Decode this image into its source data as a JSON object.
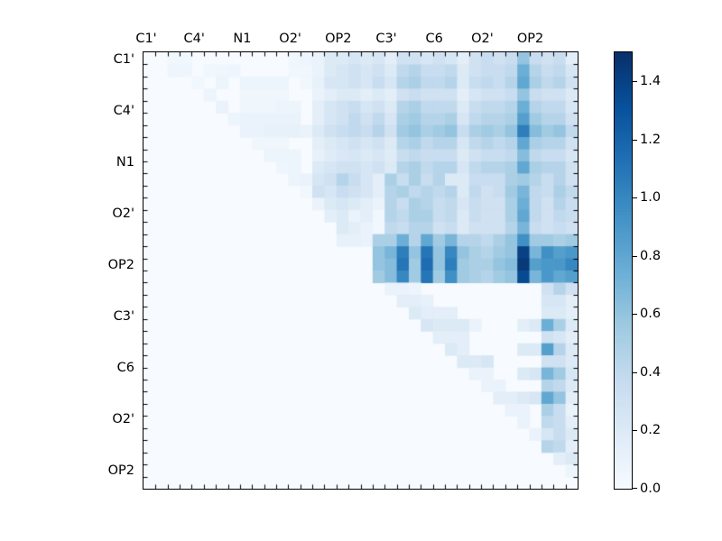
{
  "figure": {
    "background": "#ffffff",
    "frame_color": "#000000"
  },
  "chart_data": {
    "type": "heatmap",
    "title": "",
    "xlabel": "",
    "ylabel": "",
    "colormap": "Blues",
    "colormap_stops": [
      "#f7fbff",
      "#deebf7",
      "#c6dbef",
      "#9ecae1",
      "#6baed6",
      "#4292c6",
      "#2171b5",
      "#08519c",
      "#08306b"
    ],
    "vmin": 0.0,
    "vmax": 1.5,
    "n": 36,
    "grid": false,
    "x_tick_labels": [
      "C1'",
      "C4'",
      "N1",
      "O2'",
      "OP2",
      "C3'",
      "C6",
      "O2'",
      "OP2"
    ],
    "y_tick_labels": [
      "C1'",
      "C4'",
      "N1",
      "O2'",
      "OP2",
      "C3'",
      "C6",
      "O2'",
      "OP2"
    ],
    "label_cell_positions": [
      0,
      4,
      8,
      12,
      16,
      20,
      24,
      28,
      32
    ],
    "minor_ticks_every_cell": true,
    "matrix": [
      [
        0,
        0,
        0.05,
        0.05,
        0,
        0,
        0,
        0,
        0,
        0,
        0,
        0,
        0.05,
        0.07,
        0.1,
        0.2,
        0.2,
        0.25,
        0.2,
        0.25,
        0.15,
        0.3,
        0.3,
        0.25,
        0.3,
        0.25,
        0.15,
        0.3,
        0.35,
        0.3,
        0.35,
        0.6,
        0.35,
        0.3,
        0.35,
        0.15
      ],
      [
        0,
        0,
        0.07,
        0.07,
        0,
        0.05,
        0.06,
        0.07,
        0,
        0,
        0,
        0,
        0.05,
        0.05,
        0.1,
        0.2,
        0.25,
        0.3,
        0.25,
        0.3,
        0.2,
        0.4,
        0.45,
        0.35,
        0.35,
        0.4,
        0.2,
        0.3,
        0.35,
        0.35,
        0.4,
        0.75,
        0.45,
        0.35,
        0.4,
        0.25
      ],
      [
        0,
        0,
        0,
        0,
        0.05,
        0,
        0.08,
        0,
        0.08,
        0.08,
        0.08,
        0.08,
        0,
        0.05,
        0.12,
        0.25,
        0.25,
        0.3,
        0.25,
        0.35,
        0.25,
        0.45,
        0.5,
        0.4,
        0.4,
        0.45,
        0.2,
        0.35,
        0.4,
        0.35,
        0.45,
        0.8,
        0.5,
        0.4,
        0.45,
        0.3
      ],
      [
        0,
        0,
        0,
        0,
        0,
        0.08,
        0,
        0,
        0.06,
        0.06,
        0.06,
        0.06,
        0,
        0,
        0.1,
        0.15,
        0.2,
        0.2,
        0.15,
        0.2,
        0.15,
        0.3,
        0.35,
        0.3,
        0.3,
        0.3,
        0.15,
        0.25,
        0.3,
        0.3,
        0.35,
        0.6,
        0.35,
        0.3,
        0.3,
        0.2
      ],
      [
        0,
        0,
        0,
        0,
        0,
        0,
        0.1,
        0,
        0.06,
        0.06,
        0.06,
        0.08,
        0.08,
        0,
        0.15,
        0.25,
        0.3,
        0.35,
        0.25,
        0.3,
        0.2,
        0.45,
        0.5,
        0.4,
        0.4,
        0.4,
        0.2,
        0.35,
        0.4,
        0.4,
        0.45,
        0.75,
        0.45,
        0.4,
        0.4,
        0.25
      ],
      [
        0,
        0,
        0,
        0,
        0,
        0,
        0,
        0.08,
        0.1,
        0.1,
        0.1,
        0.1,
        0.1,
        0,
        0.15,
        0.25,
        0.3,
        0.4,
        0.3,
        0.4,
        0.25,
        0.5,
        0.55,
        0.45,
        0.45,
        0.5,
        0.25,
        0.4,
        0.45,
        0.45,
        0.5,
        0.85,
        0.55,
        0.45,
        0.45,
        0.3
      ],
      [
        0,
        0,
        0,
        0,
        0,
        0,
        0,
        0,
        0.1,
        0.1,
        0.12,
        0.12,
        0.12,
        0.1,
        0.2,
        0.3,
        0.35,
        0.4,
        0.35,
        0.45,
        0.3,
        0.55,
        0.6,
        0.5,
        0.55,
        0.6,
        0.35,
        0.5,
        0.55,
        0.5,
        0.6,
        1.05,
        0.65,
        0.55,
        0.6,
        0.4
      ],
      [
        0,
        0,
        0,
        0,
        0,
        0,
        0,
        0,
        0,
        0.06,
        0.06,
        0.06,
        0,
        0,
        0.15,
        0.2,
        0.25,
        0.3,
        0.25,
        0.3,
        0.2,
        0.45,
        0.5,
        0.4,
        0.45,
        0.45,
        0.25,
        0.4,
        0.45,
        0.4,
        0.45,
        0.8,
        0.5,
        0.45,
        0.45,
        0.3
      ],
      [
        0,
        0,
        0,
        0,
        0,
        0,
        0,
        0,
        0,
        0,
        0.08,
        0.08,
        0.08,
        0,
        0.12,
        0.18,
        0.22,
        0.25,
        0.2,
        0.25,
        0.18,
        0.35,
        0.4,
        0.35,
        0.35,
        0.35,
        0.2,
        0.3,
        0.35,
        0.35,
        0.4,
        0.65,
        0.4,
        0.35,
        0.35,
        0.25
      ],
      [
        0,
        0,
        0,
        0,
        0,
        0,
        0,
        0,
        0,
        0,
        0,
        0.07,
        0.08,
        0,
        0.2,
        0.25,
        0.3,
        0.3,
        0.25,
        0.3,
        0.2,
        0.45,
        0.5,
        0.4,
        0.45,
        0.45,
        0.25,
        0.4,
        0.45,
        0.45,
        0.5,
        0.8,
        0.5,
        0.45,
        0.45,
        0.3
      ],
      [
        0,
        0,
        0,
        0,
        0,
        0,
        0,
        0,
        0,
        0,
        0,
        0,
        0.08,
        0.1,
        0.25,
        0.3,
        0.45,
        0.35,
        0.25,
        0.15,
        0.5,
        0.35,
        0.5,
        0.35,
        0.45,
        0.2,
        0.2,
        0.35,
        0.35,
        0.35,
        0.5,
        0.55,
        0.45,
        0.35,
        0.45,
        0.3
      ],
      [
        0,
        0,
        0,
        0,
        0,
        0,
        0,
        0,
        0,
        0,
        0,
        0,
        0,
        0.05,
        0.3,
        0.25,
        0.35,
        0.3,
        0.25,
        0.15,
        0.45,
        0.5,
        0.4,
        0.45,
        0.4,
        0.45,
        0.2,
        0.4,
        0.3,
        0.35,
        0.55,
        0.7,
        0.4,
        0.35,
        0.5,
        0.4
      ],
      [
        0,
        0,
        0,
        0,
        0,
        0,
        0,
        0,
        0,
        0,
        0,
        0,
        0,
        0,
        0.1,
        0.2,
        0.25,
        0.2,
        0.15,
        0.1,
        0.45,
        0.35,
        0.5,
        0.45,
        0.35,
        0.4,
        0.25,
        0.35,
        0.3,
        0.3,
        0.5,
        0.75,
        0.4,
        0.3,
        0.45,
        0.35
      ],
      [
        0,
        0,
        0,
        0,
        0,
        0,
        0,
        0,
        0,
        0,
        0,
        0,
        0,
        0,
        0,
        0.15,
        0.2,
        0.1,
        0.15,
        0.05,
        0.45,
        0.4,
        0.5,
        0.5,
        0.35,
        0.4,
        0.2,
        0.35,
        0.3,
        0.3,
        0.5,
        0.8,
        0.4,
        0.3,
        0.4,
        0.35
      ],
      [
        0,
        0,
        0,
        0,
        0,
        0,
        0,
        0,
        0,
        0,
        0,
        0,
        0,
        0,
        0,
        0,
        0.2,
        0.15,
        0.1,
        0.05,
        0.4,
        0.35,
        0.45,
        0.45,
        0.3,
        0.35,
        0.2,
        0.3,
        0.3,
        0.3,
        0.45,
        0.7,
        0.35,
        0.3,
        0.35,
        0.3
      ],
      [
        0,
        0,
        0,
        0,
        0,
        0,
        0,
        0,
        0,
        0,
        0,
        0,
        0,
        0,
        0,
        0,
        0.12,
        0.12,
        0.1,
        0.5,
        0.5,
        0.75,
        0.45,
        0.8,
        0.55,
        0.7,
        0.45,
        0.45,
        0.4,
        0.5,
        0.6,
        0.95,
        0.55,
        0.55,
        0.5,
        0.55
      ],
      [
        0,
        0,
        0,
        0,
        0,
        0,
        0,
        0,
        0,
        0,
        0,
        0,
        0,
        0,
        0,
        0,
        0,
        0,
        0,
        0.6,
        0.7,
        1.05,
        0.6,
        1.1,
        0.6,
        1.0,
        0.6,
        0.5,
        0.45,
        0.55,
        0.6,
        1.4,
        0.7,
        0.95,
        0.85,
        0.9
      ],
      [
        0,
        0,
        0,
        0,
        0,
        0,
        0,
        0,
        0,
        0,
        0,
        0,
        0,
        0,
        0,
        0,
        0,
        0,
        0,
        0.6,
        0.65,
        1.1,
        0.55,
        1.15,
        0.6,
        1.05,
        0.55,
        0.5,
        0.5,
        0.6,
        0.65,
        1.45,
        0.85,
        0.9,
        0.9,
        1.0
      ],
      [
        0,
        0,
        0,
        0,
        0,
        0,
        0,
        0,
        0,
        0,
        0,
        0,
        0,
        0,
        0,
        0,
        0,
        0,
        0,
        0.55,
        0.65,
        1.0,
        0.55,
        1.1,
        0.55,
        0.95,
        0.55,
        0.5,
        0.45,
        0.55,
        0.6,
        1.35,
        0.7,
        0.9,
        0.8,
        0.85
      ],
      [
        0,
        0,
        0,
        0,
        0,
        0,
        0,
        0,
        0,
        0,
        0,
        0,
        0,
        0,
        0,
        0,
        0,
        0,
        0,
        0,
        0.1,
        0.1,
        0.08,
        0,
        0,
        0,
        0,
        0,
        0,
        0,
        0,
        0,
        0,
        0.3,
        0.45,
        0.3
      ],
      [
        0,
        0,
        0,
        0,
        0,
        0,
        0,
        0,
        0,
        0,
        0,
        0,
        0,
        0,
        0,
        0,
        0,
        0,
        0,
        0,
        0,
        0.15,
        0.15,
        0.12,
        0,
        0,
        0,
        0,
        0,
        0,
        0,
        0,
        0,
        0.25,
        0.25,
        0.15
      ],
      [
        0,
        0,
        0,
        0,
        0,
        0,
        0,
        0,
        0,
        0,
        0,
        0,
        0,
        0,
        0,
        0,
        0,
        0,
        0,
        0,
        0,
        0,
        0.2,
        0.15,
        0.15,
        0.15,
        0,
        0,
        0,
        0,
        0,
        0,
        0,
        0.2,
        0.2,
        0.15
      ],
      [
        0,
        0,
        0,
        0,
        0,
        0,
        0,
        0,
        0,
        0,
        0,
        0,
        0,
        0,
        0,
        0,
        0,
        0,
        0,
        0,
        0,
        0,
        0,
        0.25,
        0.2,
        0.2,
        0.2,
        0.1,
        0,
        0,
        0,
        0.15,
        0.2,
        0.75,
        0.5,
        0.2
      ],
      [
        0,
        0,
        0,
        0,
        0,
        0,
        0,
        0,
        0,
        0,
        0,
        0,
        0,
        0,
        0,
        0,
        0,
        0,
        0,
        0,
        0,
        0,
        0,
        0,
        0.15,
        0.15,
        0.15,
        0,
        0,
        0,
        0,
        0,
        0,
        0.3,
        0.25,
        0.15
      ],
      [
        0,
        0,
        0,
        0,
        0,
        0,
        0,
        0,
        0,
        0,
        0,
        0,
        0,
        0,
        0,
        0,
        0,
        0,
        0,
        0,
        0,
        0,
        0,
        0,
        0,
        0.2,
        0.15,
        0,
        0,
        0,
        0,
        0.2,
        0.2,
        0.85,
        0.45,
        0.2
      ],
      [
        0,
        0,
        0,
        0,
        0,
        0,
        0,
        0,
        0,
        0,
        0,
        0,
        0,
        0,
        0,
        0,
        0,
        0,
        0,
        0,
        0,
        0,
        0,
        0,
        0,
        0,
        0.2,
        0.2,
        0.25,
        0,
        0,
        0,
        0,
        0.3,
        0.3,
        0.2
      ],
      [
        0,
        0,
        0,
        0,
        0,
        0,
        0,
        0,
        0,
        0,
        0,
        0,
        0,
        0,
        0,
        0,
        0,
        0,
        0,
        0,
        0,
        0,
        0,
        0,
        0,
        0,
        0,
        0.1,
        0.1,
        0,
        0,
        0.2,
        0.25,
        0.7,
        0.55,
        0.25
      ],
      [
        0,
        0,
        0,
        0,
        0,
        0,
        0,
        0,
        0,
        0,
        0,
        0,
        0,
        0,
        0,
        0,
        0,
        0,
        0,
        0,
        0,
        0,
        0,
        0,
        0,
        0,
        0,
        0,
        0.1,
        0.1,
        0,
        0,
        0,
        0.45,
        0.4,
        0.2
      ],
      [
        0,
        0,
        0,
        0,
        0,
        0,
        0,
        0,
        0,
        0,
        0,
        0,
        0,
        0,
        0,
        0,
        0,
        0,
        0,
        0,
        0,
        0,
        0,
        0,
        0,
        0,
        0,
        0,
        0,
        0.15,
        0.15,
        0.2,
        0.25,
        0.8,
        0.6,
        0.15
      ],
      [
        0,
        0,
        0,
        0,
        0,
        0,
        0,
        0,
        0,
        0,
        0,
        0,
        0,
        0,
        0,
        0,
        0,
        0,
        0,
        0,
        0,
        0,
        0,
        0,
        0,
        0,
        0,
        0,
        0,
        0,
        0.1,
        0.1,
        0,
        0.5,
        0.35,
        0.1
      ],
      [
        0,
        0,
        0,
        0,
        0,
        0,
        0,
        0,
        0,
        0,
        0,
        0,
        0,
        0,
        0,
        0,
        0,
        0,
        0,
        0,
        0,
        0,
        0,
        0,
        0,
        0,
        0,
        0,
        0,
        0,
        0,
        0.1,
        0,
        0.4,
        0.35,
        0.15
      ],
      [
        0,
        0,
        0,
        0,
        0,
        0,
        0,
        0,
        0,
        0,
        0,
        0,
        0,
        0,
        0,
        0,
        0,
        0,
        0,
        0,
        0,
        0,
        0,
        0,
        0,
        0,
        0,
        0,
        0,
        0,
        0,
        0,
        0.1,
        0.25,
        0.35,
        0.2
      ],
      [
        0,
        0,
        0,
        0,
        0,
        0,
        0,
        0,
        0,
        0,
        0,
        0,
        0,
        0,
        0,
        0,
        0,
        0,
        0,
        0,
        0,
        0,
        0,
        0,
        0,
        0,
        0,
        0,
        0,
        0,
        0,
        0,
        0,
        0.45,
        0.4,
        0.15
      ],
      [
        0,
        0,
        0,
        0,
        0,
        0,
        0,
        0,
        0,
        0,
        0,
        0,
        0,
        0,
        0,
        0,
        0,
        0,
        0,
        0,
        0,
        0,
        0,
        0,
        0,
        0,
        0,
        0,
        0,
        0,
        0,
        0,
        0,
        0,
        0.15,
        0.2
      ],
      [
        0,
        0,
        0,
        0,
        0,
        0,
        0,
        0,
        0,
        0,
        0,
        0,
        0,
        0,
        0,
        0,
        0,
        0,
        0,
        0,
        0,
        0,
        0,
        0,
        0,
        0,
        0,
        0,
        0,
        0,
        0,
        0,
        0,
        0,
        0,
        0.08
      ],
      [
        0,
        0,
        0,
        0,
        0,
        0,
        0,
        0,
        0,
        0,
        0,
        0,
        0,
        0,
        0,
        0,
        0,
        0,
        0,
        0,
        0,
        0,
        0,
        0,
        0,
        0,
        0,
        0,
        0,
        0,
        0,
        0,
        0,
        0,
        0,
        0
      ]
    ]
  },
  "colorbar": {
    "vmin": 0.0,
    "vmax": 1.5,
    "ticks": [
      {
        "value": 0.0,
        "label": "0.0"
      },
      {
        "value": 0.2,
        "label": "0.2"
      },
      {
        "value": 0.4,
        "label": "0.4"
      },
      {
        "value": 0.6,
        "label": "0.6"
      },
      {
        "value": 0.8,
        "label": "0.8"
      },
      {
        "value": 1.0,
        "label": "1.0"
      },
      {
        "value": 1.2,
        "label": "1.2"
      },
      {
        "value": 1.4,
        "label": "1.4"
      }
    ]
  }
}
